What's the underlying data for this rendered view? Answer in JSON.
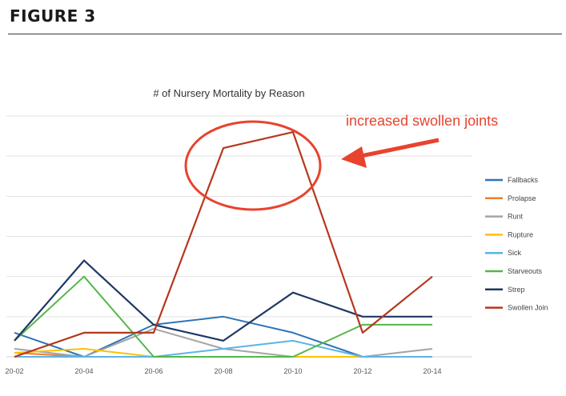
{
  "figure_label": "FIGURE 3",
  "chart_data": {
    "type": "line",
    "title": "# of Nursery Mortality by Reason",
    "xlabel": "",
    "ylabel": "",
    "categories": [
      "20-02",
      "20-04",
      "20-06",
      "20-08",
      "20-10",
      "20-12",
      "20-14"
    ],
    "ylim": [
      0,
      30
    ],
    "grid": true,
    "legend_position": "right",
    "series": [
      {
        "name": "Fallbacks",
        "color": "#2e75b6",
        "values": [
          3,
          0,
          4,
          5,
          3,
          0,
          0
        ]
      },
      {
        "name": "Prolapse",
        "color": "#ed7d31",
        "values": [
          0.5,
          0,
          0,
          0,
          0,
          0,
          0
        ]
      },
      {
        "name": "Runt",
        "color": "#a5a5a5",
        "values": [
          1,
          0,
          3.5,
          1,
          0,
          0,
          1
        ]
      },
      {
        "name": "Rupture",
        "color": "#ffc000",
        "values": [
          0.5,
          1,
          0,
          0,
          0,
          0,
          0
        ]
      },
      {
        "name": "Sick",
        "color": "#5bb4e6",
        "values": [
          0,
          0,
          0,
          1,
          2,
          0,
          0
        ]
      },
      {
        "name": "Starveouts",
        "color": "#53b847",
        "values": [
          2,
          10,
          0,
          0,
          0,
          4,
          4
        ]
      },
      {
        "name": "Strep",
        "color": "#1f3864",
        "values": [
          2,
          12,
          4,
          2,
          8,
          5,
          5
        ]
      },
      {
        "name": "Swollen Join",
        "color": "#b5381e",
        "values": [
          0,
          3,
          3,
          26,
          28,
          3,
          10
        ]
      }
    ],
    "annotation": {
      "text": "increased swollen joints",
      "color": "#e8432e"
    }
  }
}
